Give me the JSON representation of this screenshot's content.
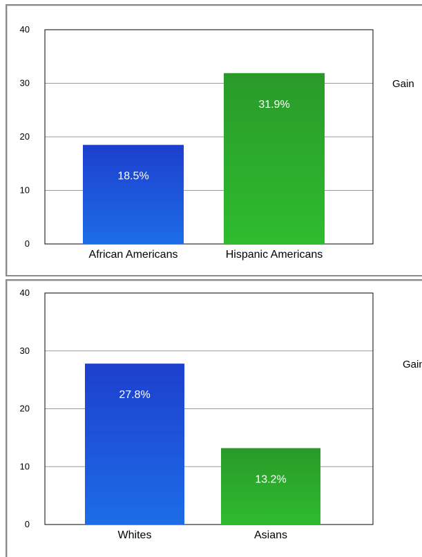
{
  "colors": {
    "blue_top": "#1d3fce",
    "blue_bottom": "#1d6ce6",
    "green_top": "#2a9a2a",
    "green_bottom": "#2ebc2e",
    "grid": "#9a9a9a"
  },
  "chart_data": [
    {
      "type": "bar",
      "categories": [
        "African Americans",
        "Hispanic Americans"
      ],
      "series": [
        {
          "name": "Gain",
          "values": [
            18.5,
            31.9
          ]
        }
      ],
      "data_labels": [
        "18.5%",
        "31.9%"
      ],
      "bar_colors": [
        "blue",
        "green"
      ],
      "ylim": [
        0,
        40
      ],
      "yticks": [
        "0",
        "10",
        "20",
        "30",
        "40"
      ],
      "grid": true,
      "legend": "right",
      "title": "",
      "xlabel": "",
      "ylabel": ""
    },
    {
      "type": "bar",
      "categories": [
        "Whites",
        "Asians"
      ],
      "series": [
        {
          "name": "Gain",
          "values": [
            27.8,
            13.2
          ]
        }
      ],
      "data_labels": [
        "27.8%",
        "13.2%"
      ],
      "bar_colors": [
        "blue",
        "green"
      ],
      "ylim": [
        0,
        40
      ],
      "yticks": [
        "0",
        "10",
        "20",
        "30",
        "40"
      ],
      "grid": true,
      "legend": "right",
      "title": "",
      "xlabel": "",
      "ylabel": ""
    }
  ]
}
